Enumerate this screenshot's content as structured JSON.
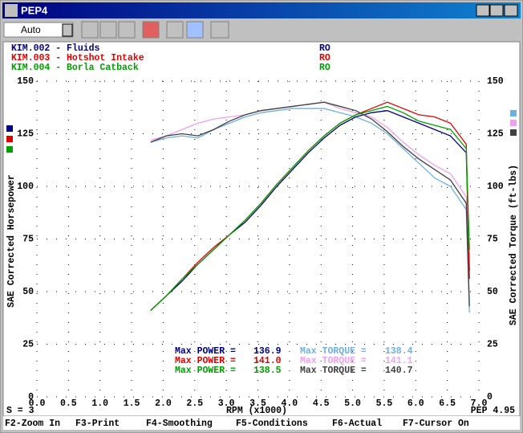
{
  "window": {
    "title": "PEP4",
    "dropdown": "Auto",
    "status_left": "S = 3",
    "status_right": "PEP 4.95",
    "function_keys": [
      "F2-Zoom In",
      "F3-Print",
      "F4-Smoothing",
      "F5-Conditions",
      "F6-Actual",
      "F7-Cursor On"
    ]
  },
  "chart_data": {
    "type": "line",
    "xlabel": "RPM (x1000)",
    "ylabel": "SAE Corrected Horsepower",
    "y2label": "SAE Corrected Torque (ft-lbs)",
    "xlim": [
      0,
      7
    ],
    "xticks": [
      {
        "value": 0,
        "label": "0.0"
      },
      0.5,
      {
        "value": 1,
        "label": "1.0"
      },
      1.5,
      {
        "value": 2,
        "label": "2.0"
      },
      2.5,
      {
        "value": 3,
        "label": "3.0"
      },
      3.5,
      {
        "value": 4,
        "label": "4.0"
      },
      4.5,
      {
        "value": 5,
        "label": "5.0"
      },
      5.5,
      {
        "value": 6,
        "label": "6.0"
      },
      6.5,
      {
        "value": 7,
        "label": "7.0"
      }
    ],
    "ylim": [
      0,
      150
    ],
    "yticks": [
      0,
      25,
      50,
      75,
      100,
      125,
      150
    ],
    "y2lim": [
      0,
      150
    ],
    "y2ticks": [
      0,
      25,
      50,
      75,
      100,
      125,
      150
    ],
    "grid": true,
    "max_power_label": "Max POWER =",
    "max_torque_label": "Max TORQUE =",
    "x": [
      1.8,
      2.05,
      2.3,
      2.55,
      2.8,
      3.05,
      3.3,
      3.55,
      3.8,
      4.05,
      4.3,
      4.55,
      4.8,
      5.05,
      5.3,
      5.55,
      5.8,
      6.05,
      6.3,
      6.55,
      6.8,
      6.85
    ],
    "runs": [
      {
        "name": "KIM.002 - Fluids",
        "code": "RO",
        "power_color": "#000080",
        "torque_color": "#6fb0e0",
        "max_power": 136.9,
        "max_torque": 138.4,
        "power": [
          41,
          48,
          55,
          63,
          70,
          77,
          83,
          91,
          100,
          108,
          116,
          123,
          129,
          133,
          135,
          136,
          133,
          130,
          127,
          124,
          116,
          60
        ],
        "torque": [
          121,
          123,
          124,
          123,
          127,
          130,
          133,
          135,
          136,
          137,
          137,
          137,
          135,
          133,
          130,
          125,
          118,
          111,
          104,
          100,
          89,
          40
        ]
      },
      {
        "name": "KIM.003 - Hotshot Intake",
        "code": "RO",
        "power_color": "#e00000",
        "torque_color": "#f0a0f0",
        "max_power": 141.0,
        "max_torque": 141.1,
        "power": [
          41,
          48,
          56,
          64,
          71,
          77,
          84,
          92,
          101,
          109,
          117,
          124,
          130,
          134,
          137,
          140,
          137,
          134,
          133,
          130,
          120,
          56
        ],
        "torque": [
          122,
          124,
          127,
          130,
          132,
          133,
          134,
          136,
          137,
          138,
          139,
          140,
          137,
          135,
          133,
          128,
          121,
          115,
          110,
          106,
          95,
          45
        ]
      },
      {
        "name": "KIM.004 - Borla Catback",
        "code": "RO",
        "power_color": "#00a000",
        "torque_color": "#404040",
        "max_power": 138.5,
        "max_torque": 140.7,
        "power": [
          41,
          48,
          56,
          63,
          70,
          77,
          84,
          92,
          101,
          109,
          117,
          124,
          130,
          134,
          136,
          138,
          135,
          131,
          129,
          127,
          118,
          70
        ],
        "torque": [
          121,
          124,
          125,
          124,
          127,
          131,
          134,
          136,
          137,
          138,
          139,
          140,
          138,
          136,
          132,
          126,
          119,
          113,
          108,
          103,
          92,
          43
        ]
      }
    ]
  }
}
